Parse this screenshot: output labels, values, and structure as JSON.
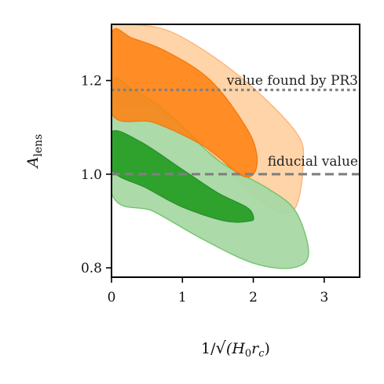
{
  "chart_data": {
    "type": "area",
    "title": "",
    "xlabel_parts": {
      "prefix": "1/",
      "body": "(H",
      "sub1": "0",
      "mid": "r",
      "sub2": "c",
      "suffix": ")"
    },
    "ylabel_parts": {
      "main": "A",
      "sub": "lens"
    },
    "xlim": [
      0,
      3.5
    ],
    "ylim": [
      0.78,
      1.32
    ],
    "xticks": [
      0,
      1,
      2,
      3
    ],
    "xtick_labels": [
      "0",
      "1",
      "2",
      "3"
    ],
    "yticks": [
      0.8,
      1.0,
      1.2
    ],
    "ytick_labels": [
      "0.8",
      "1.0",
      "1.2"
    ],
    "grid": false,
    "reference_lines": [
      {
        "label": "value found by PR3",
        "y": 1.18,
        "style": "dotted",
        "color": "#808080"
      },
      {
        "label": "fiducial value",
        "y": 1.0,
        "style": "dashed",
        "color": "#808080"
      }
    ],
    "contours": [
      {
        "level": "outer",
        "color": "#ffcc99",
        "edge": "#ffb074",
        "opacity": 0.85,
        "points": [
          [
            0,
            1.32
          ],
          [
            0.3,
            1.32
          ],
          [
            0.9,
            1.3
          ],
          [
            1.8,
            1.21
          ],
          [
            2.6,
            1.09
          ],
          [
            2.7,
            1.02
          ],
          [
            2.6,
            0.93
          ],
          [
            2.35,
            0.92
          ],
          [
            1.9,
            0.97
          ],
          [
            1.3,
            1.06
          ],
          [
            0.6,
            1.14
          ],
          [
            0,
            1.16
          ]
        ]
      },
      {
        "level": "outer",
        "color": "#a8d8a4",
        "edge": "#6fc16a",
        "opacity": 0.95,
        "points": [
          [
            0,
            1.19
          ],
          [
            0.3,
            1.18
          ],
          [
            0.8,
            1.13
          ],
          [
            1.5,
            1.03
          ],
          [
            2.2,
            0.97
          ],
          [
            2.6,
            0.92
          ],
          [
            2.78,
            0.83
          ],
          [
            2.55,
            0.8
          ],
          [
            2.0,
            0.81
          ],
          [
            1.3,
            0.86
          ],
          [
            0.6,
            0.92
          ],
          [
            0,
            0.96
          ]
        ]
      },
      {
        "level": "inner",
        "color": "#ff7f0e",
        "edge": "#f07a10",
        "opacity": 0.85,
        "points": [
          [
            0,
            1.3
          ],
          [
            0.3,
            1.29
          ],
          [
            0.8,
            1.26
          ],
          [
            1.4,
            1.2
          ],
          [
            1.9,
            1.1
          ],
          [
            2.05,
            1.04
          ],
          [
            2.0,
            1.0
          ],
          [
            1.8,
            1.0
          ],
          [
            1.3,
            1.06
          ],
          [
            0.6,
            1.11
          ],
          [
            0,
            1.13
          ]
        ]
      },
      {
        "level": "inner",
        "color": "#2ca02c",
        "edge": "#2a8f2a",
        "opacity": 0.98,
        "points": [
          [
            0,
            1.09
          ],
          [
            0.4,
            1.07
          ],
          [
            1.0,
            1.01
          ],
          [
            1.5,
            0.96
          ],
          [
            1.9,
            0.93
          ],
          [
            2.0,
            0.91
          ],
          [
            1.95,
            0.9
          ],
          [
            1.6,
            0.9
          ],
          [
            1.0,
            0.93
          ],
          [
            0.5,
            0.97
          ],
          [
            0,
            1.01
          ]
        ]
      }
    ]
  }
}
